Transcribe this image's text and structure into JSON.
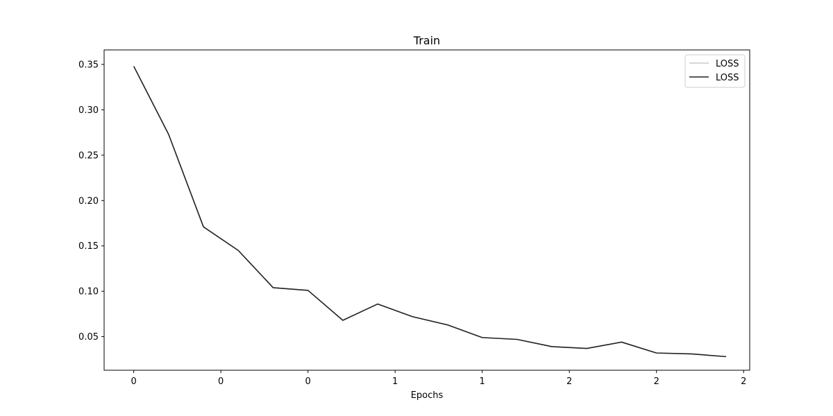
{
  "chart_data": {
    "type": "line",
    "title": "Train",
    "xlabel": "Epochs",
    "ylabel": "",
    "x": [
      0,
      0.4,
      0.8,
      1.2,
      1.6,
      2.0,
      2.4,
      2.8,
      3.2,
      3.6,
      4.0,
      4.4,
      4.8,
      5.2,
      5.6,
      6.0,
      6.4,
      6.8
    ],
    "xlim": [
      -0.34,
      7.07
    ],
    "x_ticks": [
      0,
      1,
      2,
      3,
      4,
      5,
      6,
      7
    ],
    "x_tick_labels": [
      "0",
      "0",
      "0",
      "1",
      "1",
      "2",
      "2",
      "2"
    ],
    "ylim": [
      0.013,
      0.366
    ],
    "y_ticks": [
      0.05,
      0.1,
      0.15,
      0.2,
      0.25,
      0.3,
      0.35
    ],
    "y_tick_labels": [
      "0.05",
      "0.10",
      "0.15",
      "0.20",
      "0.25",
      "0.30",
      "0.35"
    ],
    "series": [
      {
        "name": "LOSS",
        "color": "#cccccc",
        "values": [
          0.348,
          0.273,
          0.171,
          0.145,
          0.104,
          0.101,
          0.068,
          0.086,
          0.072,
          0.063,
          0.049,
          0.047,
          0.039,
          0.037,
          0.044,
          0.032,
          0.031,
          0.028
        ]
      },
      {
        "name": "LOSS",
        "color": "#222222",
        "values": [
          0.348,
          0.273,
          0.171,
          0.145,
          0.104,
          0.101,
          0.068,
          0.086,
          0.072,
          0.063,
          0.049,
          0.047,
          0.039,
          0.037,
          0.044,
          0.032,
          0.031,
          0.028
        ]
      }
    ],
    "grid": false,
    "legend_position": "top-right"
  }
}
